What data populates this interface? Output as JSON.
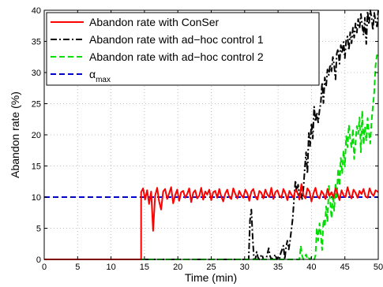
{
  "chart_data": {
    "type": "line",
    "xlabel": "Time (min)",
    "ylabel": "Abandon rate (%)",
    "xlim": [
      0,
      50
    ],
    "ylim": [
      0,
      40
    ],
    "xticks": [
      0,
      5,
      10,
      15,
      20,
      25,
      30,
      35,
      40,
      45,
      50
    ],
    "yticks": [
      0,
      5,
      10,
      15,
      20,
      25,
      30,
      35,
      40
    ],
    "grid": true,
    "legend_position": "top-left",
    "series": [
      {
        "name": "Abandon rate with ConSer",
        "color": "#ff0000",
        "style": "solid",
        "x": [
          0,
          14.5,
          14.5,
          14.8,
          15.1,
          15.4,
          15.7,
          16.0,
          16.3,
          16.6,
          16.9,
          17.2,
          17.5,
          17.8,
          18.1,
          18.4,
          18.7,
          19.0,
          19.3,
          19.6,
          19.9,
          20.2,
          20.5,
          20.8,
          21.1,
          21.4,
          21.7,
          22.0,
          22.3,
          22.6,
          22.9,
          23.2,
          23.5,
          23.8,
          24.1,
          24.4,
          24.7,
          25.0,
          25.3,
          25.6,
          25.9,
          26.2,
          26.5,
          26.8,
          27.1,
          27.4,
          27.7,
          28.0,
          28.3,
          28.6,
          28.9,
          29.2,
          29.5,
          29.8,
          30.1,
          30.4,
          30.7,
          31.0,
          31.3,
          31.6,
          31.9,
          32.2,
          32.5,
          32.8,
          33.1,
          33.4,
          33.7,
          34.0,
          34.3,
          34.6,
          34.9,
          35.2,
          35.5,
          35.8,
          36.1,
          36.4,
          36.7,
          37.0,
          37.3,
          37.6,
          37.9,
          38.2,
          38.5,
          38.8,
          39.1,
          39.4,
          39.7,
          40.0,
          40.3,
          40.6,
          40.9,
          41.2,
          41.5,
          41.8,
          42.1,
          42.4,
          42.7,
          43.0,
          43.3,
          43.6,
          43.9,
          44.2,
          44.5,
          44.8,
          45.1,
          45.4,
          45.7,
          46.0,
          46.3,
          46.6,
          46.9,
          47.2,
          47.5,
          47.8,
          48.1,
          48.4,
          48.7,
          49.0,
          49.3,
          49.6,
          50.0
        ],
        "y": [
          0,
          0,
          10.8,
          11.4,
          9.6,
          11.1,
          8.9,
          10.9,
          4.6,
          10.2,
          11.5,
          9.3,
          8.0,
          10.9,
          11.3,
          9.7,
          10.6,
          11.6,
          9.0,
          10.3,
          11.2,
          9.4,
          10.8,
          11.0,
          9.9,
          10.5,
          11.4,
          9.2,
          10.7,
          11.1,
          9.8,
          10.2,
          11.5,
          9.6,
          10.9,
          10.4,
          11.2,
          9.5,
          10.8,
          11.0,
          9.9,
          11.3,
          10.1,
          9.3,
          10.6,
          11.2,
          10.0,
          9.7,
          11.4,
          10.5,
          9.8,
          11.0,
          10.3,
          9.9,
          11.2,
          10.6,
          9.4,
          10.9,
          11.3,
          10.1,
          9.6,
          11.0,
          10.7,
          9.8,
          11.2,
          10.4,
          10.0,
          11.5,
          9.7,
          10.8,
          11.1,
          10.2,
          9.9,
          11.3,
          10.6,
          9.5,
          11.0,
          10.4,
          9.9,
          11.2,
          10.7,
          9.6,
          12.1,
          10.3,
          9.8,
          11.4,
          10.9,
          9.3,
          10.6,
          11.5,
          10.1,
          9.8,
          11.0,
          10.5,
          9.7,
          11.3,
          10.2,
          10.8,
          9.9,
          11.4,
          10.6,
          9.5,
          11.1,
          10.3,
          10.0,
          11.6,
          10.4,
          9.8,
          11.2,
          10.7,
          9.9,
          11.0,
          10.5,
          11.3,
          10.1,
          9.9,
          11.4,
          10.6,
          10.2,
          11.1,
          10.8
        ],
        "_note": null
      },
      {
        "name": "Abandon rate with ad−hoc control 1",
        "color": "#000000",
        "style": "dashdot",
        "x": [
          0,
          30.6,
          30.8,
          31.0,
          31.2,
          31.4,
          31.6,
          31.8,
          32.0,
          32.2,
          32.4,
          32.6,
          32.8,
          33.0,
          33.2,
          33.4,
          33.6,
          33.8,
          34.0,
          34.2,
          34.4,
          34.6,
          34.8,
          35.0,
          35.2,
          35.4,
          35.6,
          35.8,
          36.0,
          36.2,
          36.4,
          36.6,
          36.8,
          37.0,
          37.2,
          37.4,
          37.6,
          37.8,
          38.0,
          38.2,
          38.4,
          38.6,
          38.8,
          39.0,
          39.2,
          39.4,
          39.6,
          39.8,
          40.0,
          40.2,
          40.4,
          40.6,
          40.8,
          41.0,
          41.2,
          41.4,
          41.6,
          41.8,
          42.0,
          42.2,
          42.4,
          42.6,
          42.8,
          43.0,
          43.2,
          43.4,
          43.6,
          43.8,
          44.0,
          44.2,
          44.4,
          44.6,
          44.8,
          45.0,
          45.2,
          45.4,
          45.6,
          45.8,
          46.0,
          46.2,
          46.4,
          46.6,
          46.8,
          47.0,
          47.2,
          47.4,
          47.6,
          47.8,
          48.0,
          48.2,
          48.4,
          48.6,
          48.8,
          49.0,
          49.2,
          49.4,
          49.6,
          49.8,
          50.0
        ],
        "y": [
          0,
          0,
          6.3,
          8.0,
          3.4,
          0,
          0,
          1.2,
          0.3,
          0,
          0.5,
          0.8,
          0,
          0,
          0,
          0.9,
          1.8,
          0.6,
          0,
          0.2,
          0.4,
          0.8,
          0,
          0.3,
          0,
          1.0,
          1.6,
          2.2,
          0,
          2.0,
          3.0,
          1.6,
          3.0,
          4.8,
          6.6,
          9.8,
          12.7,
          10.6,
          12.0,
          10.2,
          11.2,
          9.7,
          11.3,
          14.5,
          17.2,
          13.8,
          20.3,
          18.2,
          21.9,
          19.4,
          24.5,
          22.1,
          23.6,
          22.0,
          23.9,
          25.1,
          28.4,
          25.1,
          29.2,
          27.8,
          30.5,
          29.6,
          31.3,
          30.2,
          32.5,
          31.1,
          28.9,
          33.1,
          33.8,
          31.4,
          34.4,
          33.1,
          34.9,
          32.3,
          35.2,
          35.8,
          33.6,
          36.5,
          34.7,
          37.2,
          35.6,
          37.9,
          36.4,
          38.6,
          37.1,
          39.4,
          37.5,
          36.0,
          38.8,
          34.6,
          39.8,
          37.7,
          40.0,
          38.9,
          36.8,
          39.6,
          38.2,
          37.4,
          40.0
        ],
        "_note": null
      },
      {
        "name": "Abandon rate with ad−hoc control 2",
        "color": "#00dd00",
        "style": "dashed",
        "x": [
          0,
          38.2,
          38.4,
          38.6,
          38.8,
          39.0,
          39.2,
          39.4,
          39.6,
          39.8,
          40.0,
          40.2,
          40.4,
          40.6,
          40.8,
          41.0,
          41.2,
          41.4,
          41.6,
          41.8,
          42.0,
          42.2,
          42.4,
          42.6,
          42.8,
          43.0,
          43.2,
          43.4,
          43.6,
          43.8,
          44.0,
          44.2,
          44.4,
          44.6,
          44.8,
          45.0,
          45.2,
          45.4,
          45.6,
          45.8,
          46.0,
          46.2,
          46.4,
          46.6,
          46.8,
          47.0,
          47.2,
          47.4,
          47.6,
          47.8,
          48.0,
          48.2,
          48.4,
          48.6,
          48.8,
          49.0,
          49.2,
          49.4,
          49.6,
          49.8,
          50.0
        ],
        "y": [
          0,
          0,
          2.2,
          0.6,
          0,
          0.3,
          0.8,
          0,
          0.2,
          0,
          0.4,
          0,
          0,
          0.6,
          5.1,
          3.0,
          5.8,
          4.1,
          1.5,
          6.4,
          5.2,
          8.5,
          6.0,
          11.8,
          9.3,
          6.6,
          10.5,
          7.8,
          12.3,
          10.0,
          14.6,
          11.8,
          16.3,
          13.7,
          17.5,
          14.9,
          19.8,
          18.0,
          21.6,
          19.2,
          17.9,
          21.0,
          16.1,
          18.8,
          21.4,
          20.1,
          22.8,
          17.2,
          23.9,
          18.4,
          21.3,
          19.0,
          22.7,
          20.3,
          18.6,
          22.2,
          24.5,
          26.9,
          31.2,
          32.8,
          32.2
        ],
        "_note": null
      },
      {
        "name": "α",
        "name_subscript": "max",
        "color": "#0000cc",
        "style": "dashed",
        "x": [
          0,
          50
        ],
        "y": [
          10,
          10
        ],
        "_note": null
      }
    ]
  }
}
